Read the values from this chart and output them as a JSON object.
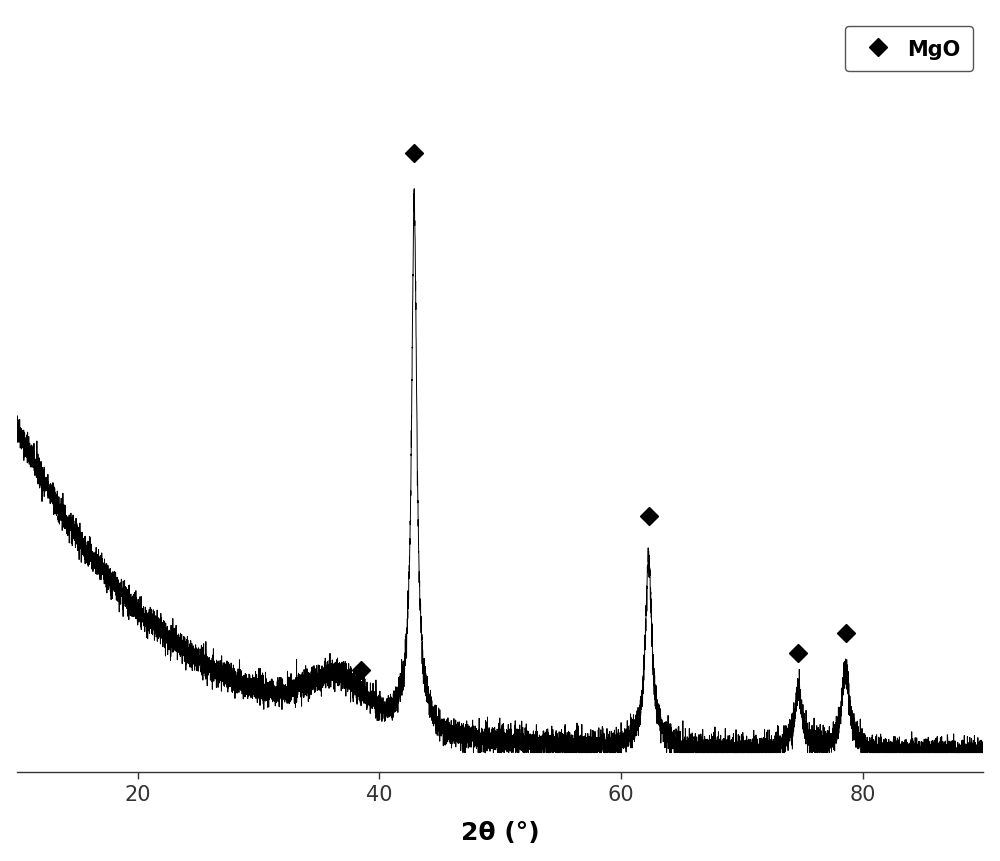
{
  "xlabel": "2θ (°)",
  "xlabel_fontsize": 18,
  "tick_fontsize": 15,
  "legend_label": "MgO",
  "legend_fontsize": 15,
  "background_color": "#ffffff",
  "line_color": "#000000",
  "xlim": [
    10,
    90
  ],
  "ylim_min": -0.03,
  "ylim_max": 1.15,
  "xticks": [
    20,
    40,
    60,
    80
  ],
  "noise_seed": 42,
  "noise_amplitude": 0.012
}
